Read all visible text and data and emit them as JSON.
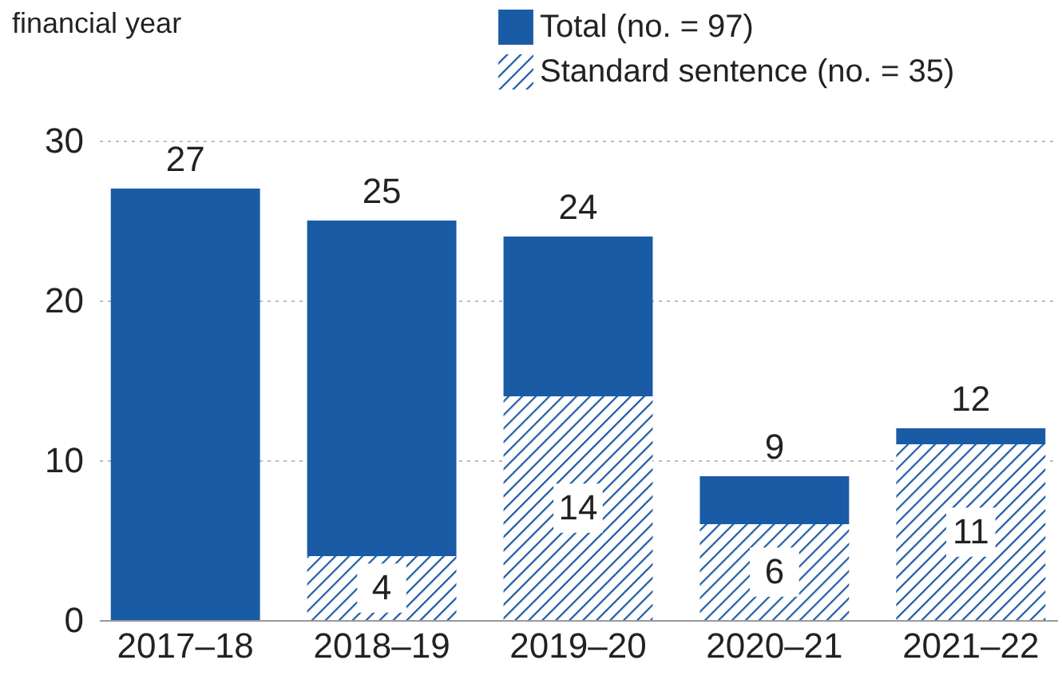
{
  "chart_data": {
    "type": "bar",
    "ylabel": "financial year",
    "stacked": true,
    "categories": [
      "2017–18",
      "2018–19",
      "2019–20",
      "2020–21",
      "2021–22"
    ],
    "series": [
      {
        "name": "Standard sentence (no. = 35)",
        "color": "#1a5ba6",
        "values": [
          null,
          4,
          14,
          6,
          11
        ],
        "value_labels": [
          null,
          "4",
          "14",
          "6",
          "11"
        ]
      },
      {
        "name": "Total (no. = 97)",
        "color": "#1a5ba6",
        "values": [
          27,
          21,
          10,
          3,
          1
        ]
      }
    ],
    "totals": [
      "27",
      "25",
      "24",
      "9",
      "12"
    ],
    "ylim": [
      0,
      30
    ],
    "yticks": [
      0,
      10,
      20,
      30
    ],
    "grid": "y",
    "legend": "top right"
  }
}
